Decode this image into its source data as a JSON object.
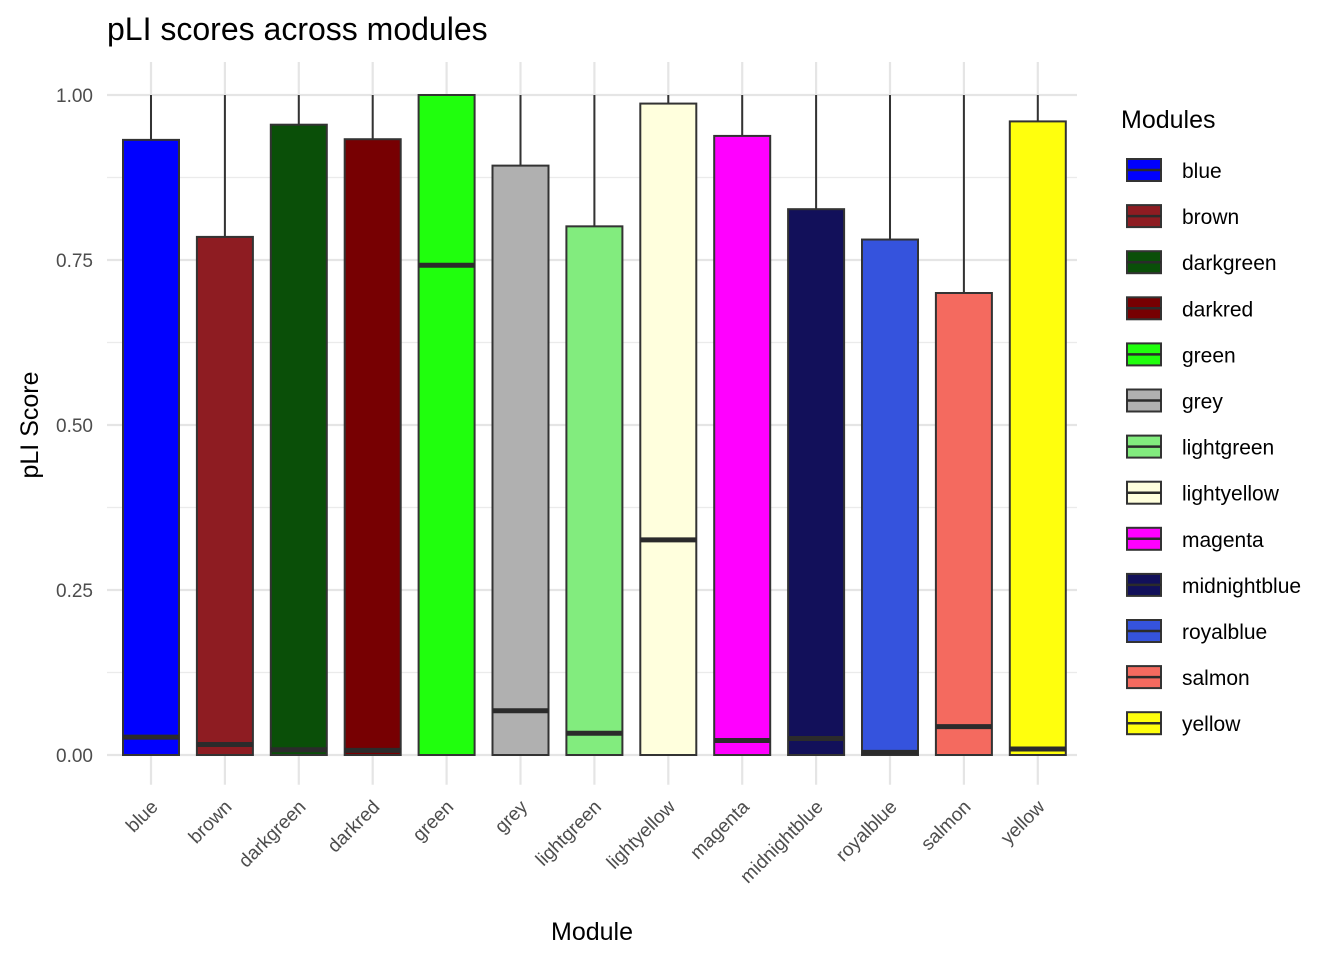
{
  "chart_data": {
    "type": "boxplot",
    "title": "pLI scores across modules",
    "xlabel": "Module",
    "ylabel": "pLI Score",
    "ylim": [
      -0.045,
      1.05
    ],
    "yticks": [
      "0.00",
      "0.25",
      "0.50",
      "0.75",
      "1.00"
    ],
    "ytick_values": [
      0,
      0.25,
      0.5,
      0.75,
      1.0
    ],
    "grid": true,
    "legend": {
      "title": "Modules",
      "position": "right"
    },
    "categories": [
      "blue",
      "brown",
      "darkgreen",
      "darkred",
      "green",
      "grey",
      "lightgreen",
      "lightyellow",
      "magenta",
      "midnightblue",
      "royalblue",
      "salmon",
      "yellow"
    ],
    "series": [
      {
        "module": "blue",
        "color": "#0000FF",
        "min": 0.0,
        "q1": 0.0,
        "median": 0.027,
        "q3": 0.932,
        "max": 1.0
      },
      {
        "module": "brown",
        "color": "#8E1C22",
        "min": 0.0,
        "q1": 0.0,
        "median": 0.016,
        "q3": 0.785,
        "max": 1.0
      },
      {
        "module": "darkgreen",
        "color": "#0A4F08",
        "min": 0.0,
        "q1": 0.0,
        "median": 0.008,
        "q3": 0.955,
        "max": 1.0
      },
      {
        "module": "darkred",
        "color": "#770002",
        "min": 0.0,
        "q1": 0.0,
        "median": 0.007,
        "q3": 0.933,
        "max": 1.0
      },
      {
        "module": "green",
        "color": "#20FF0D",
        "min": 0.0,
        "q1": 0.0,
        "median": 0.742,
        "q3": 1.0,
        "max": 1.0
      },
      {
        "module": "grey",
        "color": "#B0B0B0",
        "min": 0.0,
        "q1": 0.0,
        "median": 0.067,
        "q3": 0.893,
        "max": 1.0
      },
      {
        "module": "lightgreen",
        "color": "#82EC7E",
        "min": 0.0,
        "q1": 0.0,
        "median": 0.033,
        "q3": 0.801,
        "max": 1.0
      },
      {
        "module": "lightyellow",
        "color": "#FFFFDD",
        "min": 0.0,
        "q1": 0.0,
        "median": 0.326,
        "q3": 0.987,
        "max": 1.0
      },
      {
        "module": "magenta",
        "color": "#FF00FF",
        "min": 0.0,
        "q1": 0.0,
        "median": 0.022,
        "q3": 0.938,
        "max": 1.0
      },
      {
        "module": "midnightblue",
        "color": "#12105A",
        "min": 0.0,
        "q1": 0.0,
        "median": 0.025,
        "q3": 0.827,
        "max": 1.0
      },
      {
        "module": "royalblue",
        "color": "#3553DD",
        "min": 0.0,
        "q1": 0.0,
        "median": 0.004,
        "q3": 0.781,
        "max": 1.0
      },
      {
        "module": "salmon",
        "color": "#F46A5F",
        "min": 0.0,
        "q1": 0.0,
        "median": 0.043,
        "q3": 0.7,
        "max": 1.0
      },
      {
        "module": "yellow",
        "color": "#FFFF0D",
        "min": 0.0,
        "q1": 0.0,
        "median": 0.009,
        "q3": 0.96,
        "max": 1.0
      }
    ]
  }
}
